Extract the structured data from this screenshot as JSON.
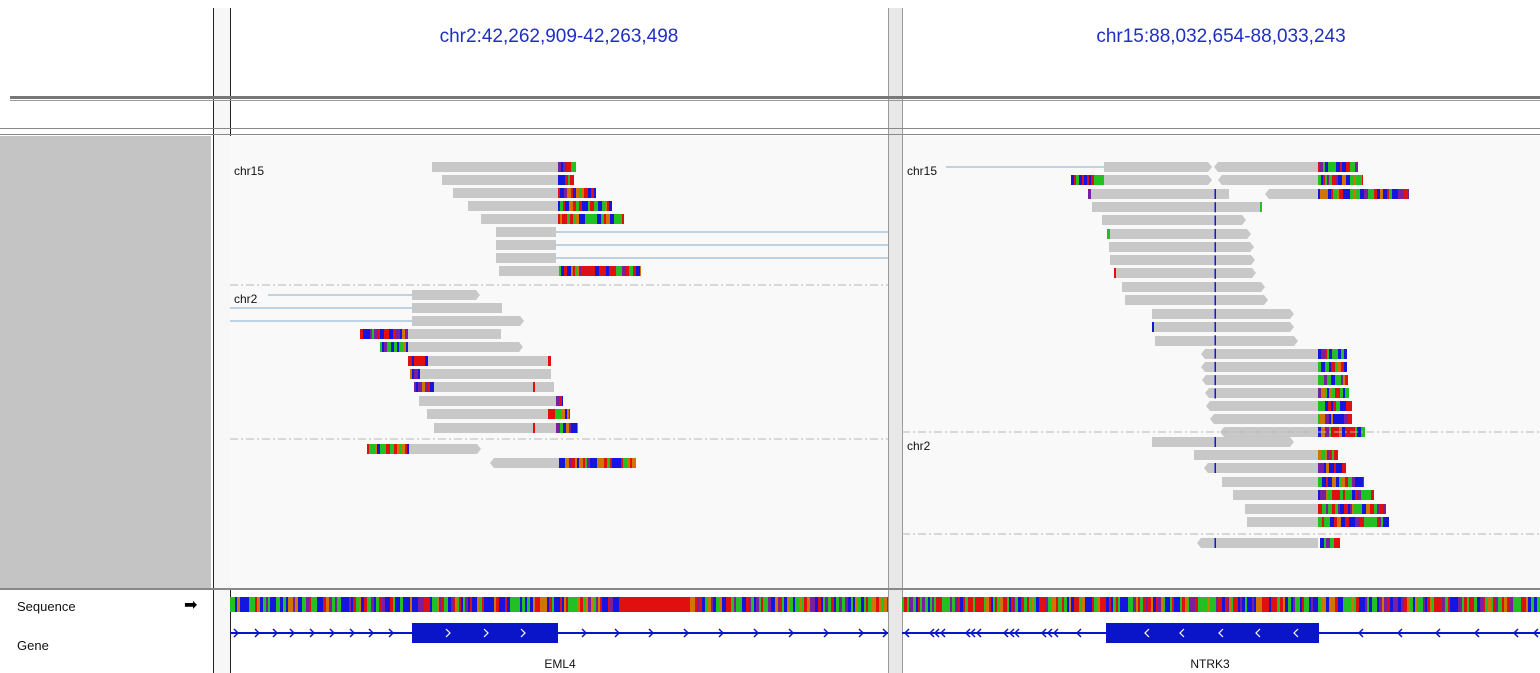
{
  "panels": [
    {
      "locus": "chr2:42,262,909-42,263,498",
      "gene": "EML4",
      "groups": [
        "chr15",
        "chr2"
      ]
    },
    {
      "locus": "chr15:88,032,654-88,033,243",
      "gene": "NTRK3",
      "groups": [
        "chr15",
        "chr2"
      ]
    }
  ],
  "tracks": {
    "sequence_label": "Sequence",
    "gene_label": "Gene"
  },
  "icons": {
    "strand_toggle": "right-arrow-icon"
  },
  "colors": {
    "read": "#c8c8c8",
    "split_line": "#a9c5da",
    "locus_text": "#1f2fc4",
    "gene_feature": "#0a14c8",
    "base_A": "#22c022",
    "base_C": "#1515e0",
    "base_G": "#d17400",
    "base_T": "#e01010"
  }
}
